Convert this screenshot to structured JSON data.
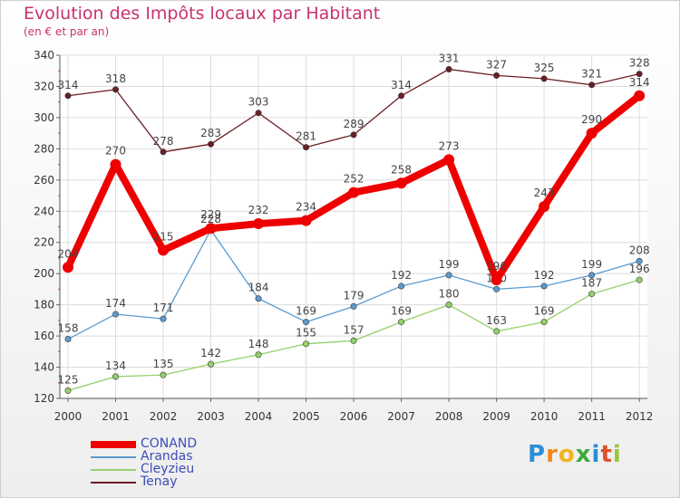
{
  "header": {
    "title": "Evolution des Impôts locaux par Habitant",
    "subtitle": "(en € et par an)"
  },
  "logo": {
    "letters": [
      "P",
      "r",
      "o",
      "x",
      "i",
      "t",
      "i"
    ],
    "colors": [
      "#2a8fd6",
      "#f08a1c",
      "#f0b41c",
      "#3daa3d",
      "#2a8fd6",
      "#e0502a",
      "#9bc43c"
    ]
  },
  "chart_data": {
    "type": "line",
    "title": "Evolution des Impôts locaux par Habitant",
    "ylabel": "(en € et par an)",
    "xlabel": "",
    "categories": [
      "2000",
      "2001",
      "2002",
      "2003",
      "2004",
      "2005",
      "2006",
      "2007",
      "2008",
      "2009",
      "2010",
      "2011",
      "2012"
    ],
    "ylim": [
      120,
      340
    ],
    "yticks": [
      "120",
      "140",
      "160",
      "180",
      "200",
      "220",
      "240",
      "260",
      "280",
      "300",
      "320",
      "340"
    ],
    "grid": true,
    "legend": "bottom-left",
    "series": [
      {
        "name": "Tenay",
        "color": "#6b1f24",
        "values": [
          314,
          318,
          278,
          283,
          303,
          281,
          289,
          314,
          331,
          327,
          325,
          321,
          328
        ],
        "labels": [
          "314",
          "318",
          "278",
          "283",
          "303",
          "281",
          "289",
          "314",
          "331",
          "327",
          "325",
          "321",
          "328"
        ]
      },
      {
        "name": "Arandas",
        "color": "#5b9bd0",
        "values": [
          158,
          174,
          171,
          228,
          184,
          169,
          179,
          192,
          199,
          190,
          192,
          199,
          208
        ],
        "labels": [
          "158",
          "174",
          "171",
          "228",
          "184",
          "169",
          "179",
          "192",
          "199",
          "190",
          "192",
          "199",
          "208"
        ]
      },
      {
        "name": "Cleyzieu",
        "color": "#93d16a",
        "values": [
          125,
          134,
          135,
          142,
          148,
          155,
          157,
          169,
          180,
          163,
          169,
          187,
          196
        ],
        "labels": [
          "125",
          "134",
          "135",
          "142",
          "148",
          "155",
          "157",
          "169",
          "180",
          "163",
          "169",
          "187",
          "196"
        ]
      },
      {
        "name": "CONAND",
        "color": "#ee0000",
        "values": [
          204,
          270,
          215,
          229,
          232,
          234,
          252,
          258,
          273,
          196,
          243,
          290,
          314
        ],
        "labels": [
          "204",
          "270",
          "215",
          "229",
          "232",
          "234",
          "252",
          "258",
          "273",
          "196",
          "243",
          "290",
          "314"
        ]
      }
    ],
    "legend_order": [
      "CONAND",
      "Arandas",
      "Cleyzieu",
      "Tenay"
    ]
  }
}
